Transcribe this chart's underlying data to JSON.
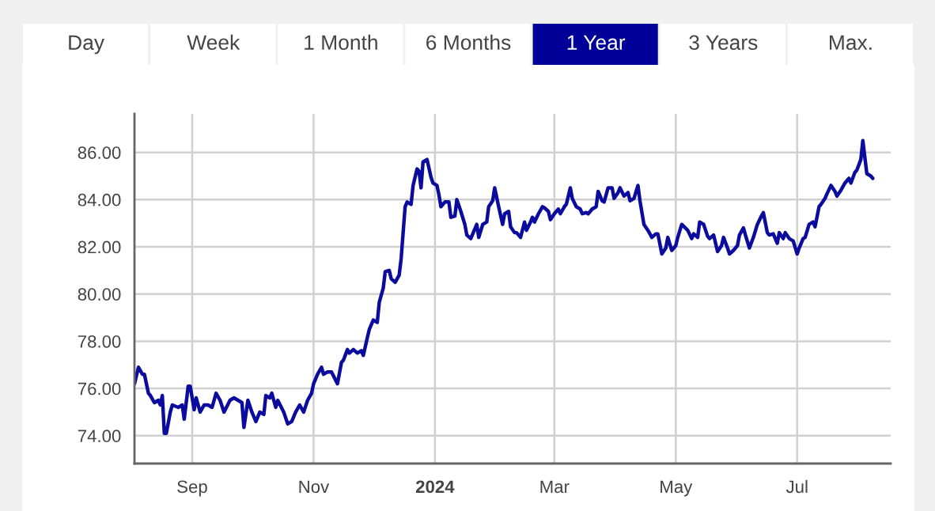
{
  "chart_data": {
    "type": "line",
    "annotations": [
      "Day",
      "Week",
      "1 Month",
      "6 Months",
      "1 Year",
      "3 Years",
      "Max."
    ],
    "x": [
      "2023-08-03",
      "2023-08-05",
      "2023-08-07",
      "2023-08-08",
      "2023-08-10",
      "2023-08-11",
      "2023-08-13",
      "2023-08-15",
      "2023-08-16",
      "2023-08-17",
      "2023-08-18",
      "2023-08-19",
      "2023-08-21",
      "2023-08-22",
      "2023-08-25",
      "2023-08-27",
      "2023-08-28",
      "2023-08-30",
      "2023-08-31",
      "2023-09-02",
      "2023-09-03",
      "2023-09-05",
      "2023-09-07",
      "2023-09-09",
      "2023-09-11",
      "2023-09-13",
      "2023-09-15",
      "2023-09-17",
      "2023-09-20",
      "2023-09-22",
      "2023-09-24",
      "2023-09-26",
      "2023-09-27",
      "2023-09-29",
      "2023-10-01",
      "2023-10-03",
      "2023-10-05",
      "2023-10-07",
      "2023-10-08",
      "2023-10-10",
      "2023-10-11",
      "2023-10-13",
      "2023-10-14",
      "2023-10-17",
      "2023-10-19",
      "2023-10-21",
      "2023-10-23",
      "2023-10-25",
      "2023-10-27",
      "2023-10-29",
      "2023-10-31",
      "2023-11-01",
      "2023-11-03",
      "2023-11-05",
      "2023-11-06",
      "2023-11-08",
      "2023-11-10",
      "2023-11-13",
      "2023-11-15",
      "2023-11-16",
      "2023-11-18",
      "2023-11-19",
      "2023-11-21",
      "2023-11-23",
      "2023-11-25",
      "2023-11-26",
      "2023-11-28",
      "2023-11-29",
      "2023-12-01",
      "2023-12-03",
      "2023-12-04",
      "2023-12-06",
      "2023-12-07",
      "2023-12-09",
      "2023-12-10",
      "2023-12-12",
      "2023-12-14",
      "2023-12-15",
      "2023-12-17",
      "2023-12-18",
      "2023-12-20",
      "2023-12-21",
      "2023-12-23",
      "2023-12-24",
      "2023-12-25",
      "2023-12-26",
      "2023-12-28",
      "2023-12-30",
      "2023-12-31",
      "2024-01-02",
      "2024-01-03",
      "2024-01-04",
      "2024-01-06",
      "2024-01-08",
      "2024-01-09",
      "2024-01-11",
      "2024-01-12",
      "2024-01-14",
      "2024-01-16",
      "2024-01-17",
      "2024-01-19",
      "2024-01-20",
      "2024-01-22",
      "2024-01-23",
      "2024-01-25",
      "2024-01-27",
      "2024-01-28",
      "2024-01-30",
      "2024-01-31",
      "2024-02-02",
      "2024-02-04",
      "2024-02-05",
      "2024-02-07",
      "2024-02-08",
      "2024-02-10",
      "2024-02-11",
      "2024-02-13",
      "2024-02-15",
      "2024-02-16",
      "2024-02-18",
      "2024-02-19",
      "2024-02-20",
      "2024-02-22",
      "2024-02-24",
      "2024-02-25",
      "2024-02-27",
      "2024-02-28",
      "2024-03-01",
      "2024-03-03",
      "2024-03-04",
      "2024-03-06",
      "2024-03-07",
      "2024-03-09",
      "2024-03-10",
      "2024-03-12",
      "2024-03-14",
      "2024-03-15",
      "2024-03-17",
      "2024-03-18",
      "2024-03-20",
      "2024-03-22",
      "2024-03-23",
      "2024-03-25",
      "2024-03-26",
      "2024-03-28",
      "2024-03-30",
      "2024-03-31",
      "2024-04-02",
      "2024-04-03",
      "2024-04-05",
      "2024-04-07",
      "2024-04-08",
      "2024-04-10",
      "2024-04-12",
      "2024-04-13",
      "2024-04-15",
      "2024-04-17",
      "2024-04-19",
      "2024-04-21",
      "2024-04-22",
      "2024-04-24",
      "2024-04-26",
      "2024-04-27",
      "2024-04-29",
      "2024-05-01",
      "2024-05-02",
      "2024-05-04",
      "2024-05-07",
      "2024-05-09",
      "2024-05-10",
      "2024-05-12",
      "2024-05-13",
      "2024-05-15",
      "2024-05-17",
      "2024-05-18",
      "2024-05-20",
      "2024-05-22",
      "2024-05-24",
      "2024-05-25",
      "2024-05-27",
      "2024-05-28",
      "2024-05-30",
      "2024-06-01",
      "2024-06-02",
      "2024-06-04",
      "2024-06-05",
      "2024-06-07",
      "2024-06-09",
      "2024-06-11",
      "2024-06-13",
      "2024-06-14",
      "2024-06-16",
      "2024-06-17",
      "2024-06-19",
      "2024-06-21",
      "2024-06-22",
      "2024-06-24",
      "2024-06-25",
      "2024-06-27",
      "2024-06-29",
      "2024-07-01",
      "2024-07-02",
      "2024-07-04",
      "2024-07-05",
      "2024-07-07",
      "2024-07-09",
      "2024-07-10",
      "2024-07-12",
      "2024-07-13",
      "2024-07-15",
      "2024-07-16",
      "2024-07-18",
      "2024-07-20",
      "2024-07-21",
      "2024-07-23",
      "2024-07-25",
      "2024-07-27",
      "2024-07-28",
      "2024-07-30",
      "2024-07-31",
      "2024-08-02",
      "2024-08-03",
      "2024-08-05",
      "2024-08-07",
      "2024-08-08"
    ],
    "series": [
      {
        "color": "#0b0b9e",
        "values": [
          76.2,
          76.9,
          76.6,
          76.6,
          75.8,
          75.7,
          75.4,
          75.5,
          75.3,
          75.7,
          74.1,
          74.1,
          75.0,
          75.3,
          75.2,
          75.3,
          74.7,
          76.1,
          76.1,
          75.1,
          75.6,
          75.0,
          75.3,
          75.3,
          75.2,
          75.8,
          75.5,
          75.0,
          75.5,
          75.6,
          75.5,
          75.4,
          74.35,
          75.5,
          75.0,
          74.6,
          75.0,
          74.9,
          75.7,
          75.6,
          75.8,
          75.2,
          75.5,
          75.0,
          74.5,
          74.6,
          75.0,
          75.3,
          75.0,
          75.5,
          75.8,
          76.2,
          76.6,
          76.9,
          76.6,
          76.7,
          76.7,
          76.2,
          77.1,
          77.2,
          77.65,
          77.5,
          77.65,
          77.5,
          77.6,
          77.4,
          78.15,
          78.5,
          78.9,
          78.8,
          79.65,
          80.25,
          80.95,
          81.0,
          80.65,
          80.5,
          80.8,
          81.5,
          83.7,
          83.9,
          83.8,
          84.6,
          85.3,
          85.2,
          84.5,
          85.6,
          85.7,
          84.95,
          84.7,
          84.6,
          84.2,
          83.7,
          83.9,
          83.9,
          83.25,
          83.3,
          84.0,
          83.5,
          82.95,
          82.5,
          82.35,
          82.55,
          82.95,
          82.4,
          82.95,
          83.05,
          83.7,
          83.95,
          84.5,
          83.7,
          82.95,
          83.4,
          83.5,
          82.85,
          82.6,
          82.6,
          82.4,
          83.05,
          82.7,
          83.05,
          83.25,
          83.05,
          83.4,
          83.7,
          83.65,
          83.5,
          83.15,
          83.4,
          83.6,
          83.4,
          83.7,
          83.8,
          84.5,
          84.05,
          83.7,
          83.6,
          83.4,
          83.45,
          83.4,
          83.6,
          83.7,
          84.35,
          83.95,
          83.9,
          84.5,
          84.5,
          84.05,
          84.3,
          84.5,
          84.15,
          84.3,
          83.95,
          84.05,
          84.6,
          83.95,
          82.95,
          82.7,
          82.4,
          82.55,
          82.55,
          81.7,
          81.95,
          82.4,
          81.85,
          82.05,
          82.4,
          82.95,
          82.7,
          82.35,
          82.55,
          82.4,
          83.05,
          82.95,
          82.45,
          82.35,
          82.5,
          81.8,
          82.05,
          82.4,
          81.95,
          81.7,
          81.85,
          82.05,
          82.5,
          82.8,
          82.5,
          81.95,
          82.4,
          82.95,
          83.3,
          83.45,
          82.6,
          82.5,
          82.55,
          82.15,
          82.6,
          82.35,
          82.6,
          82.35,
          82.25,
          81.7,
          81.95,
          82.35,
          82.4,
          82.95,
          83.05,
          82.85,
          83.7,
          83.8,
          84.05,
          84.25,
          84.6,
          84.35,
          84.15,
          84.4,
          84.7,
          84.9,
          84.7,
          85.15,
          85.25,
          85.7,
          86.5,
          85.1,
          85.0,
          84.9
        ]
      }
    ],
    "xlim": [
      "2023-08-03",
      "2024-08-17"
    ],
    "xticks": [
      {
        "value": "2023-09-01",
        "label": "Sep"
      },
      {
        "value": "2023-11-01",
        "label": "Nov"
      },
      {
        "value": "2024-01-01",
        "label": "2024"
      },
      {
        "value": "2024-03-01",
        "label": "Mar"
      },
      {
        "value": "2024-05-01",
        "label": "May"
      },
      {
        "value": "2024-07-01",
        "label": "Jul"
      }
    ],
    "ylim": [
      72.82,
      87.63
    ],
    "yticks": [
      {
        "value": 74,
        "label": "74.00"
      },
      {
        "value": 76,
        "label": "76.00"
      },
      {
        "value": 78,
        "label": "78.00"
      },
      {
        "value": 80,
        "label": "80.00"
      },
      {
        "value": 82,
        "label": "82.00"
      },
      {
        "value": 84,
        "label": "84.00"
      },
      {
        "value": 86,
        "label": "86.00"
      }
    ],
    "grid": true,
    "legend": false,
    "marker": "none",
    "line_style": "solid"
  }
}
